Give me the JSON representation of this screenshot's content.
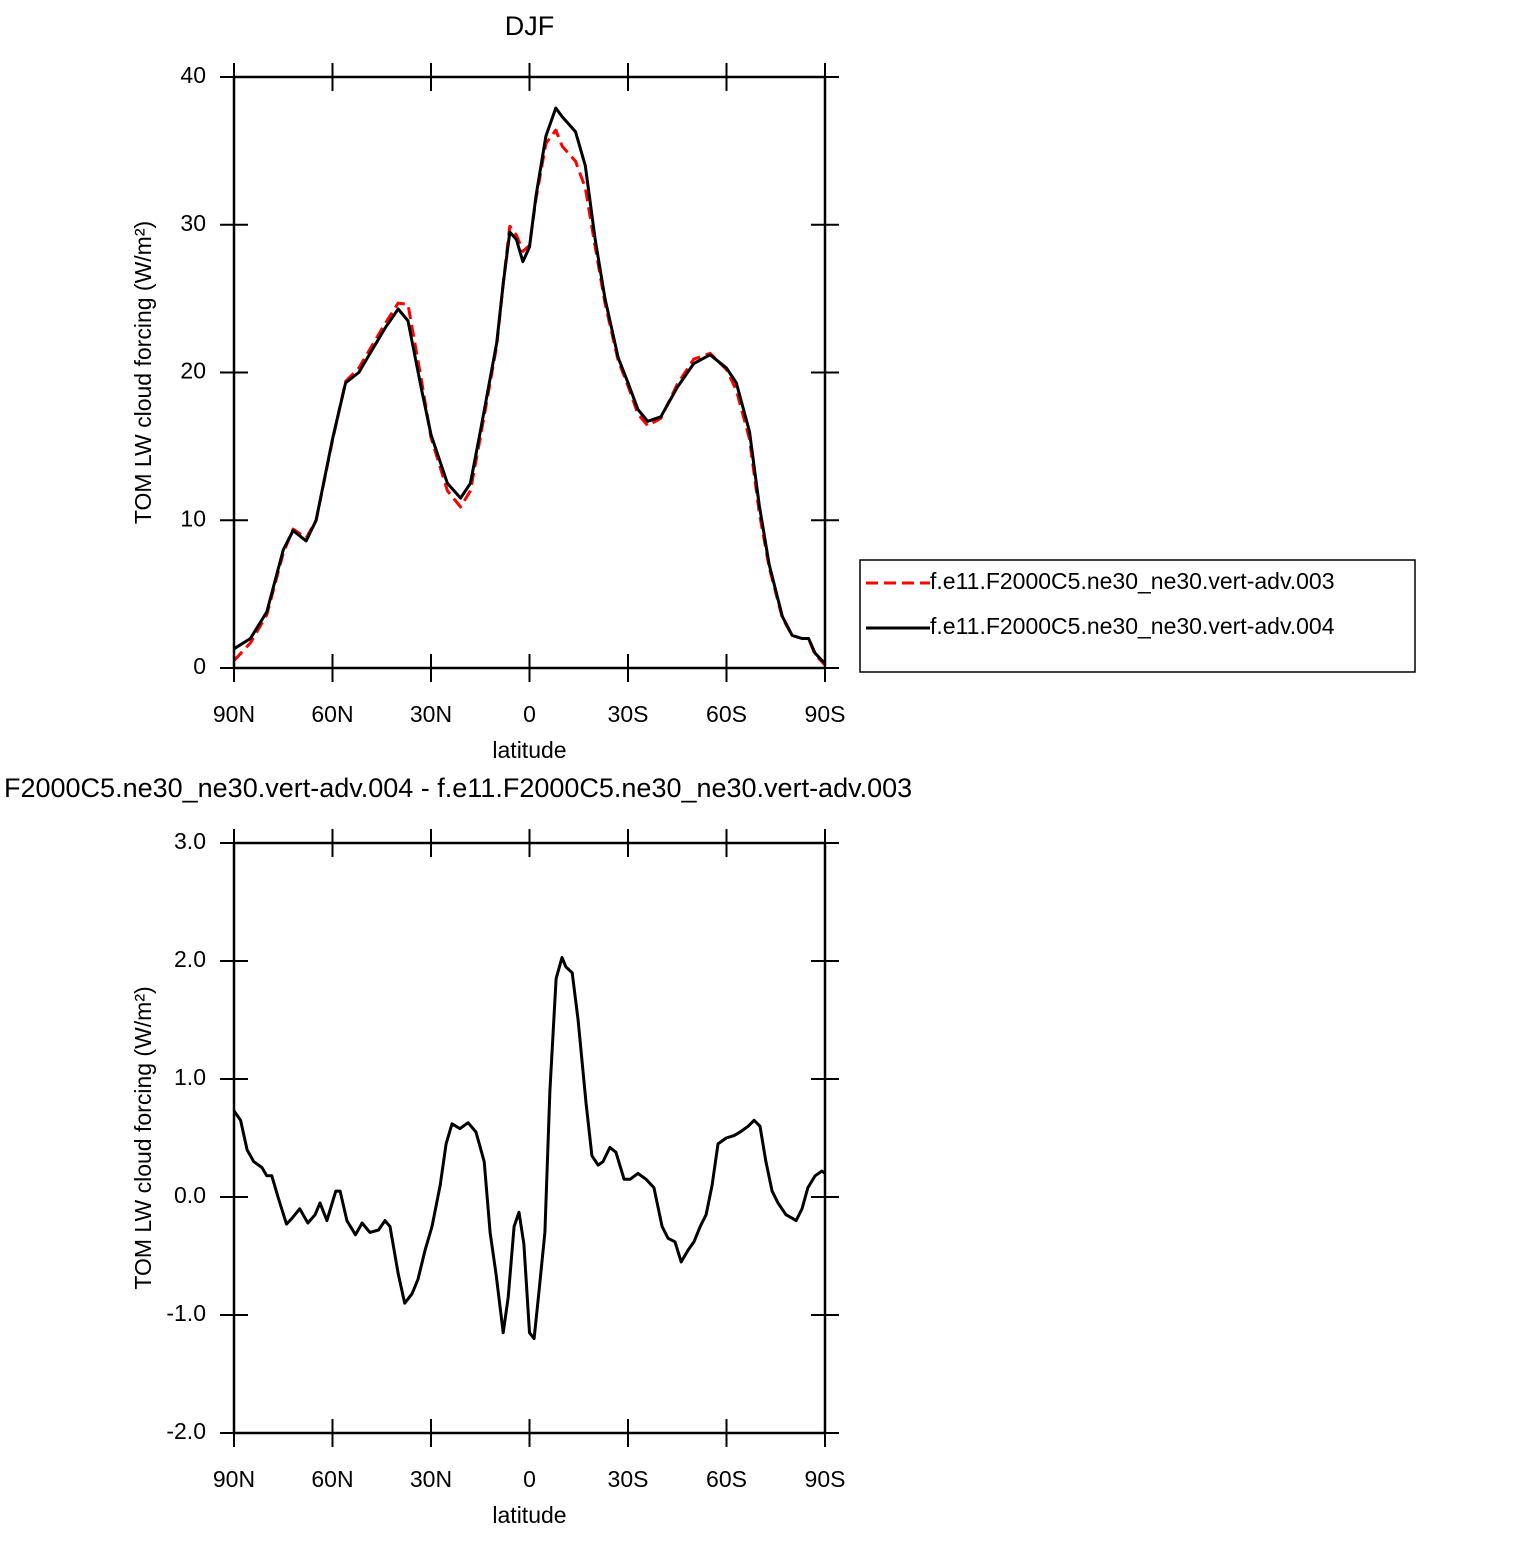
{
  "chart_data": [
    {
      "type": "line",
      "title": "DJF",
      "xlabel": "latitude",
      "ylabel": "TOM LW cloud forcing (W/m²)",
      "x": [
        90,
        85,
        80,
        75,
        72,
        68,
        65,
        60,
        56,
        52,
        48,
        44,
        40,
        37,
        33,
        30,
        25,
        21,
        18,
        15,
        10,
        8,
        6,
        4,
        2,
        0,
        -2,
        -5,
        -8,
        -10,
        -14,
        -17,
        -20,
        -23,
        -27,
        -30,
        -33,
        -36,
        -40,
        -45,
        -50,
        -55,
        -60,
        -63,
        -67,
        -70,
        -73,
        -77,
        -80,
        -83,
        -85,
        -87,
        -90
      ],
      "series": [
        {
          "name": "f.e11.F2000C5.ne30_ne30.vert-adv.003",
          "color": "#ff0000",
          "linestyle": "dashed",
          "values": [
            0.5,
            1.7,
            3.6,
            7.8,
            9.4,
            8.8,
            10,
            15.4,
            19.4,
            20.3,
            21.8,
            23.3,
            24.7,
            24.6,
            19.6,
            15.6,
            12,
            10.9,
            12,
            15.6,
            21.8,
            26,
            29.9,
            29.3,
            28.2,
            28.6,
            31.8,
            35.5,
            36.4,
            35.3,
            34.3,
            32.5,
            28.5,
            24.7,
            20.8,
            19.1,
            17.2,
            16.4,
            16.9,
            19.2,
            20.9,
            21.3,
            20.2,
            18.8,
            15.5,
            10.5,
            6.8,
            3.4,
            2.2,
            2.0,
            2.0,
            0.9,
            0.2
          ]
        },
        {
          "name": "f.e11.F2000C5.ne30_ne30.vert-adv.004",
          "color": "#000000",
          "linestyle": "solid",
          "values": [
            1.3,
            2.0,
            3.8,
            8.0,
            9.3,
            8.6,
            10,
            15.5,
            19.3,
            20,
            21.5,
            23,
            24.3,
            23.5,
            19,
            15.8,
            12.5,
            11.5,
            12.5,
            16,
            22,
            26,
            29.5,
            29,
            27.5,
            28.5,
            32,
            36,
            37.9,
            37.3,
            36.3,
            34,
            29,
            25,
            21,
            19.3,
            17.5,
            16.7,
            17,
            19,
            20.6,
            21.2,
            20.3,
            19.3,
            16,
            11,
            7,
            3.5,
            2.2,
            2.0,
            2.0,
            1.0,
            0.3
          ]
        }
      ],
      "xlim": [
        90,
        -90
      ],
      "xticks": [
        {
          "value": 90,
          "label": "90N"
        },
        {
          "value": 60,
          "label": "60N"
        },
        {
          "value": 30,
          "label": "30N"
        },
        0,
        {
          "value": -30,
          "label": "30S"
        },
        {
          "value": -60,
          "label": "60S"
        },
        {
          "value": -90,
          "label": "90S"
        }
      ],
      "ylim": [
        0,
        40
      ],
      "yticks": [
        0,
        10,
        20,
        30,
        40
      ],
      "legend": "right"
    },
    {
      "type": "line",
      "title": "F2000C5.ne30_ne30.vert-adv.004 - f.e11.F2000C5.ne30_ne30.vert-adv.003",
      "xlabel": "latitude",
      "ylabel": "TOM LW cloud forcing (W/m²)",
      "x": [
        90,
        88,
        86,
        84,
        81.5,
        80,
        78.5,
        76.6,
        74,
        72.3,
        70,
        67.5,
        65.3,
        63.8,
        61.7,
        59,
        57.7,
        55.6,
        53,
        51,
        48.6,
        46,
        44,
        42.5,
        40,
        38,
        35.8,
        34,
        31.8,
        29.7,
        27.2,
        25.4,
        23.6,
        21.2,
        18.7,
        16.3,
        13.8,
        12,
        10.2,
        8,
        6.5,
        4.7,
        3.2,
        1.7,
        0,
        -1.4,
        -2.9,
        -4.7,
        -6.2,
        -8.1,
        -9.9,
        -11.1,
        -13,
        -14.8,
        -17.2,
        -19,
        -20.9,
        -22.4,
        -24.5,
        -26.3,
        -28.8,
        -30.6,
        -33,
        -35.5,
        -37.9,
        -40.4,
        -42.2,
        -44.3,
        -46.2,
        -48.3,
        -50.1,
        -52,
        -53.8,
        -55.6,
        -57.4,
        -59.9,
        -62.3,
        -64.1,
        -66.6,
        -68.4,
        -70.2,
        -72,
        -73.9,
        -75.7,
        -78.1,
        -80,
        -81.2,
        -83,
        -84.8,
        -87,
        -89.1,
        -90
      ],
      "values": [
        0.73,
        0.65,
        0.4,
        0.3,
        0.25,
        0.18,
        0.18,
        0,
        -0.23,
        -0.18,
        -0.1,
        -0.22,
        -0.15,
        -0.05,
        -0.2,
        0.05,
        0.05,
        -0.2,
        -0.32,
        -0.22,
        -0.3,
        -0.28,
        -0.2,
        -0.25,
        -0.65,
        -0.9,
        -0.82,
        -0.7,
        -0.45,
        -0.25,
        0.1,
        0.45,
        0.62,
        0.58,
        0.63,
        0.55,
        0.3,
        -0.3,
        -0.65,
        -1.15,
        -0.85,
        -0.25,
        -0.13,
        -0.4,
        -1.15,
        -1.2,
        -0.8,
        -0.3,
        0.9,
        1.85,
        2.03,
        1.95,
        1.9,
        1.5,
        0.8,
        0.35,
        0.27,
        0.3,
        0.42,
        0.38,
        0.15,
        0.15,
        0.2,
        0.15,
        0.08,
        -0.25,
        -0.35,
        -0.38,
        -0.55,
        -0.45,
        -0.38,
        -0.25,
        -0.15,
        0.1,
        0.45,
        0.5,
        0.52,
        0.55,
        0.6,
        0.65,
        0.6,
        0.3,
        0.05,
        -0.05,
        -0.15,
        -0.18,
        -0.2,
        -0.1,
        0.08,
        0.18,
        0.22,
        0.2
      ],
      "color": "#000000",
      "linestyle": "solid",
      "xlim": [
        90,
        -90
      ],
      "xticks": [
        {
          "value": 90,
          "label": "90N"
        },
        {
          "value": 60,
          "label": "60N"
        },
        {
          "value": 30,
          "label": "30N"
        },
        0,
        {
          "value": -30,
          "label": "30S"
        },
        {
          "value": -60,
          "label": "60S"
        },
        {
          "value": -90,
          "label": "90S"
        }
      ],
      "ylim": [
        -2,
        3
      ],
      "yticks": [
        {
          "value": -2,
          "label": "-2.0"
        },
        {
          "value": -1,
          "label": "-1.0"
        },
        {
          "value": 0,
          "label": "0.0"
        },
        {
          "value": 1,
          "label": "1.0"
        },
        {
          "value": 2,
          "label": "2.0"
        },
        {
          "value": 3,
          "label": "3.0"
        }
      ]
    }
  ]
}
